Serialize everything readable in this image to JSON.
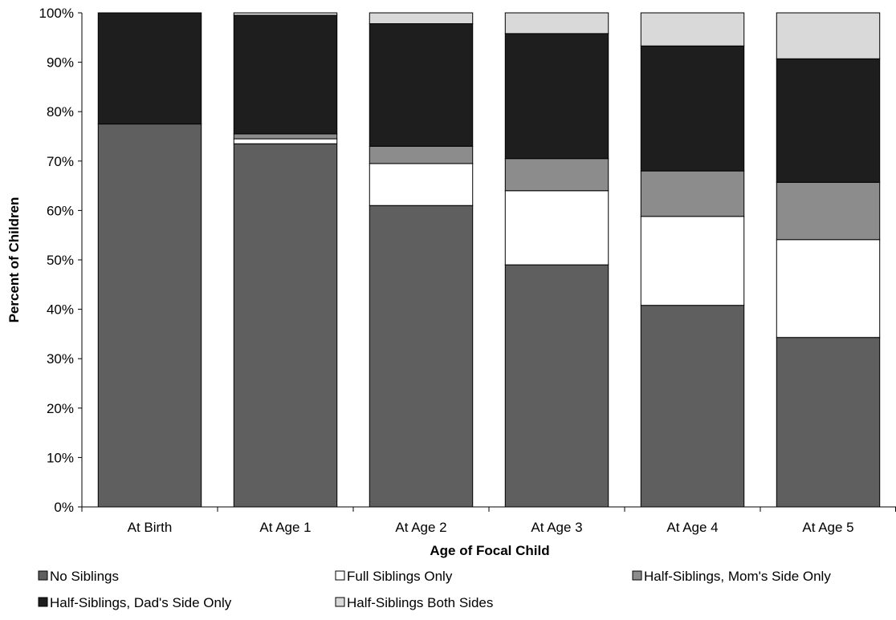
{
  "chart_data": {
    "type": "stacked-bar",
    "title": "",
    "xlabel": "Age of Focal Child",
    "ylabel": "Percent of Children",
    "ylim": [
      0,
      100
    ],
    "y_ticks": [
      "0%",
      "10%",
      "20%",
      "30%",
      "40%",
      "50%",
      "60%",
      "70%",
      "80%",
      "90%",
      "100%"
    ],
    "categories": [
      "At Birth",
      "At Age 1",
      "At Age 2",
      "At Age 3",
      "At Age 4",
      "At Age 5"
    ],
    "series": [
      {
        "name": "No Siblings",
        "color": "#5f5f5f",
        "values": [
          77.5,
          73.5,
          61.0,
          49.0,
          40.8,
          34.3
        ]
      },
      {
        "name": "Full Siblings Only",
        "color": "#ffffff",
        "values": [
          0.0,
          1.0,
          8.5,
          15.0,
          18.0,
          19.8
        ]
      },
      {
        "name": "Half-Siblings, Mom's Side Only",
        "color": "#8c8c8c",
        "values": [
          0.0,
          1.0,
          3.5,
          6.5,
          9.2,
          11.6
        ]
      },
      {
        "name": "Half-Siblings, Dad's Side Only",
        "color": "#1e1e1e",
        "values": [
          22.5,
          24.0,
          24.8,
          25.3,
          25.3,
          25.0
        ]
      },
      {
        "name": "Half-Siblings Both Sides",
        "color": "#d9d9d9",
        "values": [
          0.0,
          0.5,
          2.2,
          4.2,
          6.7,
          9.3
        ]
      }
    ],
    "grid": false,
    "legend_position": "bottom"
  }
}
